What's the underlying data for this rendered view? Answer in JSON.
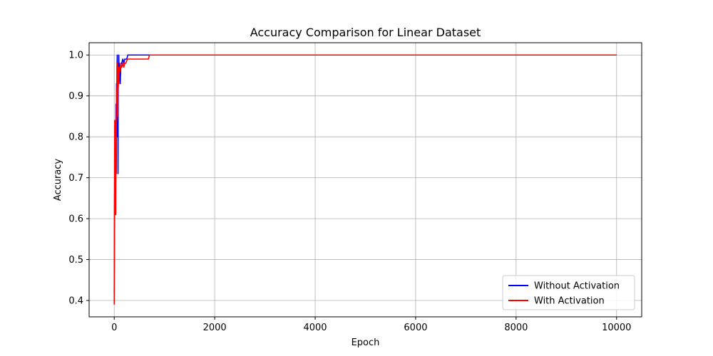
{
  "chart_data": {
    "type": "line",
    "title": "Accuracy Comparison for Linear Dataset",
    "xlabel": "Epoch",
    "ylabel": "Accuracy",
    "xlim": [
      -500,
      10500
    ],
    "ylim": [
      0.36,
      1.03
    ],
    "xticks": [
      0,
      2000,
      4000,
      6000,
      8000,
      10000
    ],
    "xtick_labels": [
      "0",
      "2000",
      "4000",
      "6000",
      "8000",
      "10000"
    ],
    "yticks": [
      0.4,
      0.5,
      0.6,
      0.7,
      0.8,
      0.9,
      1.0
    ],
    "ytick_labels": [
      "0.4",
      "0.5",
      "0.6",
      "0.7",
      "0.8",
      "0.9",
      "1.0"
    ],
    "grid": true,
    "legend_position": "lower-right",
    "series": [
      {
        "name": "Without Activation",
        "color": "#0000ff",
        "x": [
          0,
          5,
          10,
          15,
          20,
          25,
          30,
          35,
          40,
          45,
          50,
          55,
          60,
          65,
          70,
          75,
          80,
          85,
          90,
          95,
          100,
          110,
          120,
          130,
          140,
          150,
          170,
          190,
          210,
          230,
          250,
          270,
          300,
          400,
          600,
          1000,
          2000,
          4000,
          6000,
          8000,
          10000
        ],
        "y": [
          0.42,
          0.6,
          0.75,
          0.84,
          0.82,
          0.61,
          0.74,
          0.88,
          0.71,
          0.93,
          0.8,
          0.97,
          1.0,
          0.86,
          0.96,
          0.71,
          0.98,
          0.93,
          1.0,
          0.97,
          0.98,
          0.95,
          0.93,
          0.97,
          0.98,
          0.98,
          0.99,
          0.98,
          0.99,
          0.99,
          0.99,
          1.0,
          1.0,
          1.0,
          1.0,
          1.0,
          1.0,
          1.0,
          1.0,
          1.0,
          1.0
        ]
      },
      {
        "name": "With Activation",
        "color": "#ff0000",
        "x": [
          0,
          5,
          10,
          15,
          20,
          25,
          30,
          35,
          40,
          45,
          50,
          55,
          60,
          65,
          70,
          75,
          80,
          85,
          90,
          95,
          100,
          110,
          120,
          130,
          140,
          150,
          170,
          190,
          210,
          230,
          260,
          300,
          500,
          680,
          700,
          1000,
          2000,
          4000,
          6000,
          8000,
          10000
        ],
        "y": [
          0.39,
          0.65,
          0.84,
          0.62,
          0.8,
          0.84,
          0.61,
          0.84,
          0.76,
          0.92,
          0.84,
          0.97,
          0.88,
          0.98,
          0.85,
          0.96,
          0.92,
          0.97,
          0.95,
          0.93,
          0.97,
          0.97,
          0.96,
          0.98,
          0.97,
          0.97,
          0.98,
          0.97,
          0.98,
          0.98,
          0.99,
          0.99,
          0.99,
          0.99,
          1.0,
          1.0,
          1.0,
          1.0,
          1.0,
          1.0,
          1.0
        ]
      }
    ]
  }
}
